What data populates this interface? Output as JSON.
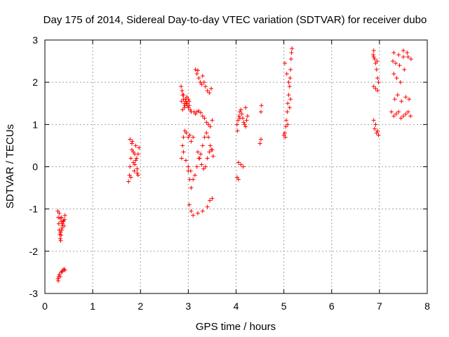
{
  "chart_data": {
    "type": "scatter",
    "title": "Day 175 of 2014, Sidereal Day-to-day VTEC variation (SDTVAR) for receiver dubo",
    "xlabel": "GPS time / hours",
    "ylabel": "SDTVAR / TECUs",
    "xlim": [
      0,
      8
    ],
    "ylim": [
      -3,
      3
    ],
    "xticks": [
      "0",
      "1",
      "2",
      "3",
      "4",
      "5",
      "6",
      "7",
      "8"
    ],
    "yticks": [
      "-3",
      "-2",
      "-1",
      "0",
      "1",
      "2",
      "3"
    ],
    "grid": true,
    "marker": "+",
    "color": "#ff0000",
    "series": [
      {
        "name": "SDTVAR",
        "x": [
          0.27,
          0.28,
          0.29,
          0.3,
          0.31,
          0.32,
          0.33,
          0.34,
          0.35,
          0.36,
          0.37,
          0.38,
          0.39,
          0.4,
          0.41,
          0.42,
          0.3,
          0.32,
          0.34,
          0.36,
          0.33,
          0.35,
          0.27,
          0.28,
          0.29,
          0.3,
          0.32,
          0.34,
          0.36,
          0.38,
          0.4,
          0.42,
          1.75,
          1.77,
          1.78,
          1.8,
          1.82,
          1.83,
          1.85,
          1.87,
          1.88,
          1.9,
          1.92,
          1.93,
          1.95,
          1.97,
          1.78,
          1.8,
          1.85,
          1.9,
          1.95,
          1.82,
          1.88,
          1.93,
          2.85,
          2.87,
          2.88,
          2.9,
          2.92,
          2.93,
          2.95,
          2.97,
          2.98,
          3.0,
          3.02,
          3.04,
          3.06,
          2.86,
          2.9,
          2.94,
          2.98,
          3.02,
          2.88,
          2.92,
          2.96,
          3.0,
          2.86,
          2.88,
          2.9,
          2.93,
          2.96,
          3.0,
          3.03,
          3.06,
          3.1,
          2.9,
          2.95,
          3.0,
          3.05,
          3.0,
          3.03,
          3.06,
          3.1,
          3.14,
          3.18,
          3.22,
          3.26,
          3.3,
          3.34,
          3.38,
          3.42,
          3.46,
          3.5,
          3.15,
          3.18,
          3.2,
          3.22,
          3.25,
          3.28,
          3.3,
          3.33,
          3.36,
          3.4,
          3.44,
          3.48,
          3.12,
          3.15,
          3.18,
          3.22,
          3.26,
          3.3,
          3.34,
          3.38,
          3.42,
          3.46,
          3.5,
          3.2,
          3.24,
          3.28,
          3.32,
          3.36,
          3.4,
          3.44,
          3.48,
          3.52,
          3.02,
          3.06,
          3.1,
          3.2,
          3.3,
          3.4,
          3.45,
          3.5,
          4.02,
          4.04,
          4.06,
          4.08,
          4.1,
          4.12,
          4.14,
          4.16,
          4.18,
          4.2,
          4.22,
          4.24,
          4.05,
          4.1,
          4.15,
          4.2,
          4.02,
          4.05,
          4.03,
          4.08,
          4.5,
          4.52,
          4.52,
          4.53,
          5.0,
          5.02,
          5.04,
          5.05,
          5.07,
          5.08,
          5.1,
          5.12,
          5.13,
          5.14,
          5.15,
          5.16,
          5.02,
          5.06,
          5.1,
          5.14,
          5.03,
          5.08,
          5.12,
          5.17,
          6.87,
          6.88,
          6.9,
          6.92,
          6.94,
          6.96,
          6.98,
          6.88,
          6.92,
          6.96,
          6.88,
          6.92,
          6.96,
          6.9,
          6.94,
          6.98,
          6.88,
          6.95,
          7.25,
          7.3,
          7.35,
          7.4,
          7.45,
          7.5,
          7.55,
          7.6,
          7.65,
          7.3,
          7.4,
          7.5,
          7.6,
          7.28,
          7.34,
          7.42,
          7.5,
          7.58,
          7.66,
          7.32,
          7.38,
          7.46,
          7.55,
          7.62,
          7.3,
          7.36,
          7.44,
          7.52
        ],
        "y": [
          -1.05,
          -1.2,
          -1.35,
          -1.5,
          -1.6,
          -1.7,
          -1.75,
          -1.62,
          -1.5,
          -1.4,
          -1.35,
          -1.3,
          -1.28,
          -1.4,
          -1.25,
          -1.15,
          -1.1,
          -1.22,
          -1.3,
          -1.45,
          -1.55,
          -1.2,
          -2.65,
          -2.7,
          -2.6,
          -2.55,
          -2.6,
          -2.5,
          -2.48,
          -2.45,
          -2.42,
          -2.45,
          -0.35,
          -0.2,
          0.0,
          0.2,
          0.4,
          0.6,
          0.1,
          -0.1,
          0.3,
          0.5,
          0.2,
          -0.05,
          -0.2,
          0.45,
          0.65,
          -0.25,
          0.35,
          0.15,
          0.3,
          0.55,
          0.05,
          -0.15,
          1.9,
          1.8,
          1.7,
          1.6,
          1.5,
          1.45,
          1.55,
          1.65,
          1.5,
          1.4,
          1.45,
          1.35,
          1.3,
          1.55,
          1.7,
          1.6,
          1.45,
          1.55,
          1.35,
          1.4,
          1.5,
          1.6,
          0.2,
          0.5,
          0.7,
          0.85,
          0.8,
          0.7,
          0.75,
          0.6,
          0.7,
          0.35,
          0.15,
          0.0,
          -0.1,
          -0.1,
          -0.3,
          -0.5,
          -0.3,
          -0.2,
          0.0,
          0.2,
          0.3,
          0.5,
          0.7,
          0.8,
          0.7,
          0.5,
          0.4,
          2.3,
          2.2,
          2.28,
          2.1,
          2.0,
          1.95,
          2.15,
          2.0,
          1.9,
          1.8,
          1.75,
          1.85,
          1.3,
          1.25,
          1.3,
          1.32,
          1.28,
          1.2,
          1.15,
          1.05,
          1.0,
          0.95,
          1.1,
          0.35,
          0.2,
          0.05,
          -0.05,
          0.0,
          0.2,
          0.35,
          0.4,
          0.25,
          -0.9,
          -1.05,
          -1.15,
          -1.1,
          -1.05,
          -0.95,
          -0.8,
          -0.75,
          1.0,
          1.1,
          1.2,
          1.3,
          1.35,
          1.25,
          1.15,
          1.05,
          1.0,
          0.95,
          1.1,
          1.2,
          0.1,
          0.05,
          0.0,
          1.4,
          -0.25,
          -0.3,
          0.85,
          1.15,
          0.55,
          0.65,
          1.3,
          1.45,
          0.75,
          0.8,
          0.95,
          1.1,
          1.3,
          1.5,
          1.7,
          1.9,
          2.1,
          2.3,
          2.55,
          2.7,
          2.45,
          2.2,
          2.0,
          1.6,
          0.7,
          1.0,
          1.4,
          2.8,
          2.65,
          2.75,
          2.55,
          2.45,
          2.3,
          2.1,
          2.0,
          1.9,
          1.85,
          1.8,
          1.1,
          1.0,
          0.85,
          0.9,
          0.8,
          0.75,
          2.6,
          2.5,
          1.3,
          1.2,
          1.25,
          1.3,
          1.15,
          1.2,
          1.25,
          1.3,
          1.2,
          2.7,
          2.65,
          2.75,
          2.6,
          2.5,
          2.45,
          2.4,
          2.6,
          2.7,
          2.55,
          1.6,
          1.7,
          1.55,
          1.65,
          1.6,
          2.2,
          2.1,
          2.0,
          2.3
        ]
      }
    ]
  }
}
